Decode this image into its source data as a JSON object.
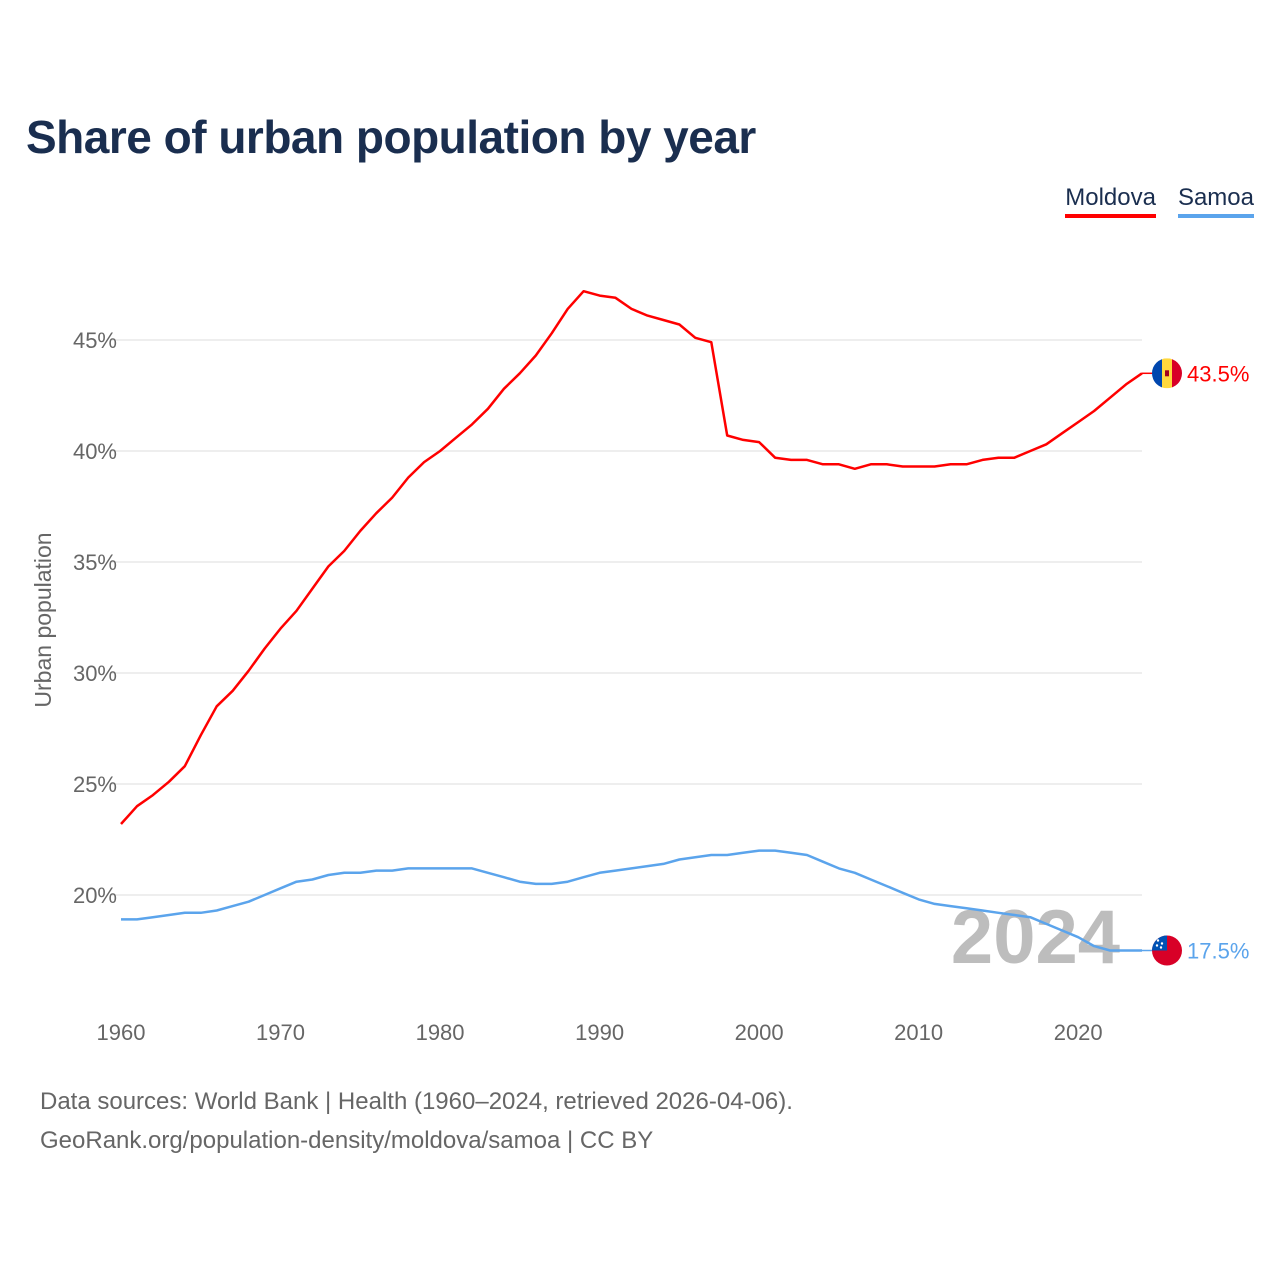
{
  "title": "Share of urban population by year",
  "legend": [
    {
      "name": "Moldova",
      "color": "#ff0000"
    },
    {
      "name": "Samoa",
      "color": "#5ba4ec"
    }
  ],
  "footer": {
    "line1": "Data sources: World Bank | Health (1960–2024, retrieved 2026-04-06).",
    "line2": "GeoRank.org/population-density/moldova/samoa | CC BY"
  },
  "chart_data": {
    "type": "line",
    "title": "Share of urban population by year",
    "xlabel": "",
    "ylabel": "Urban population",
    "xlim": [
      1960,
      2024
    ],
    "ylim": [
      15,
      48
    ],
    "x_ticks": [
      "1960",
      "1970",
      "1980",
      "1990",
      "2000",
      "2010",
      "2020"
    ],
    "y_ticks": [
      "20%",
      "25%",
      "30%",
      "35%",
      "40%",
      "45%"
    ],
    "y_tick_values": [
      20,
      25,
      30,
      35,
      40,
      45
    ],
    "grid": true,
    "legend_position": "top-right",
    "year_watermark": "2024",
    "end_labels": [
      "43.5%",
      "17.5%"
    ],
    "x_start": 1960,
    "series": [
      {
        "name": "Moldova",
        "color": "#ff0000",
        "flag": "moldova-flag",
        "values": [
          23.2,
          24.0,
          24.5,
          25.1,
          25.8,
          27.2,
          28.5,
          29.2,
          30.1,
          31.1,
          32.0,
          32.8,
          33.8,
          34.8,
          35.5,
          36.4,
          37.2,
          37.9,
          38.8,
          39.5,
          40.0,
          40.6,
          41.2,
          41.9,
          42.8,
          43.5,
          44.3,
          45.3,
          46.4,
          47.2,
          47.0,
          46.9,
          46.4,
          46.1,
          45.9,
          45.7,
          45.1,
          44.9,
          40.7,
          40.5,
          40.4,
          39.7,
          39.6,
          39.6,
          39.4,
          39.4,
          39.2,
          39.4,
          39.4,
          39.3,
          39.3,
          39.3,
          39.4,
          39.4,
          39.6,
          39.7,
          39.7,
          40.0,
          40.3,
          40.8,
          41.3,
          41.8,
          42.4,
          43.0,
          43.5
        ]
      },
      {
        "name": "Samoa",
        "color": "#5ba4ec",
        "flag": "samoa-flag",
        "values": [
          18.9,
          18.9,
          19.0,
          19.1,
          19.2,
          19.2,
          19.3,
          19.5,
          19.7,
          20.0,
          20.3,
          20.6,
          20.7,
          20.9,
          21.0,
          21.0,
          21.1,
          21.1,
          21.2,
          21.2,
          21.2,
          21.2,
          21.2,
          21.0,
          20.8,
          20.6,
          20.5,
          20.5,
          20.6,
          20.8,
          21.0,
          21.1,
          21.2,
          21.3,
          21.4,
          21.6,
          21.7,
          21.8,
          21.8,
          21.9,
          22.0,
          22.0,
          21.9,
          21.8,
          21.5,
          21.2,
          21.0,
          20.7,
          20.4,
          20.1,
          19.8,
          19.6,
          19.5,
          19.4,
          19.3,
          19.2,
          19.1,
          19.0,
          18.7,
          18.4,
          18.1,
          17.7,
          17.5,
          17.5,
          17.5
        ]
      }
    ]
  }
}
